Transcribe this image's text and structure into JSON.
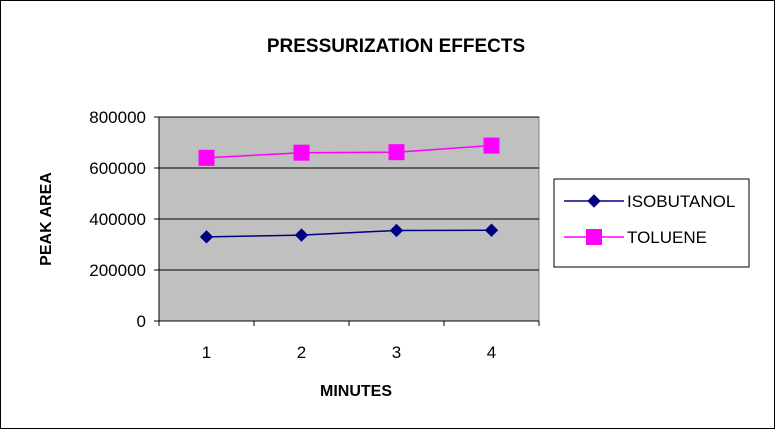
{
  "chart_data": {
    "type": "line",
    "title": "PRESSURIZATION EFFECTS",
    "xlabel": "MINUTES",
    "ylabel": "PEAK AREA",
    "x": [
      "1",
      "2",
      "3",
      "4"
    ],
    "ylim": [
      0,
      800000
    ],
    "ytick_labels": [
      "0",
      "200000",
      "400000",
      "600000",
      "800000"
    ],
    "grid": true,
    "legend_position": "right",
    "plot_background": "#c0c0c0",
    "series": [
      {
        "name": "ISOBUTANOL",
        "values": [
          330000,
          337000,
          355000,
          356000
        ],
        "color": "#000080",
        "marker": "diamond"
      },
      {
        "name": "TOLUENE",
        "values": [
          640000,
          660000,
          662000,
          688000
        ],
        "color": "#ff00ff",
        "marker": "square"
      }
    ]
  }
}
